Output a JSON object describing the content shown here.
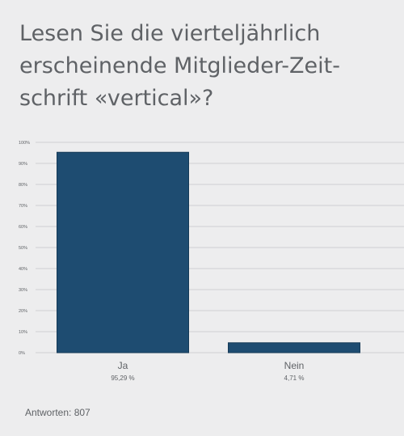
{
  "title_lines": [
    "Lesen Sie die vierteljährlich",
    "erscheinende Mitglieder-Zeit-",
    "schrift «vertical»?"
  ],
  "footer_text": "Antworten: 807",
  "colors": {
    "bar": "#1e4c71",
    "background": "#ededee",
    "grid": "#cfcfd1",
    "text": "#5f6266"
  },
  "chart_data": {
    "type": "bar",
    "categories": [
      "Ja",
      "Nein"
    ],
    "values": [
      95.29,
      4.71
    ],
    "value_labels": [
      "95,29 %",
      "4,71 %"
    ],
    "ylim": [
      0,
      100
    ],
    "yticks": [
      0,
      10,
      20,
      30,
      40,
      50,
      60,
      70,
      80,
      90,
      100
    ],
    "ytick_labels": [
      "0%",
      "10%",
      "20%",
      "30%",
      "40%",
      "50%",
      "60%",
      "70%",
      "80%",
      "90%",
      "100%"
    ],
    "grid": true,
    "title": "",
    "xlabel": "",
    "ylabel": ""
  }
}
